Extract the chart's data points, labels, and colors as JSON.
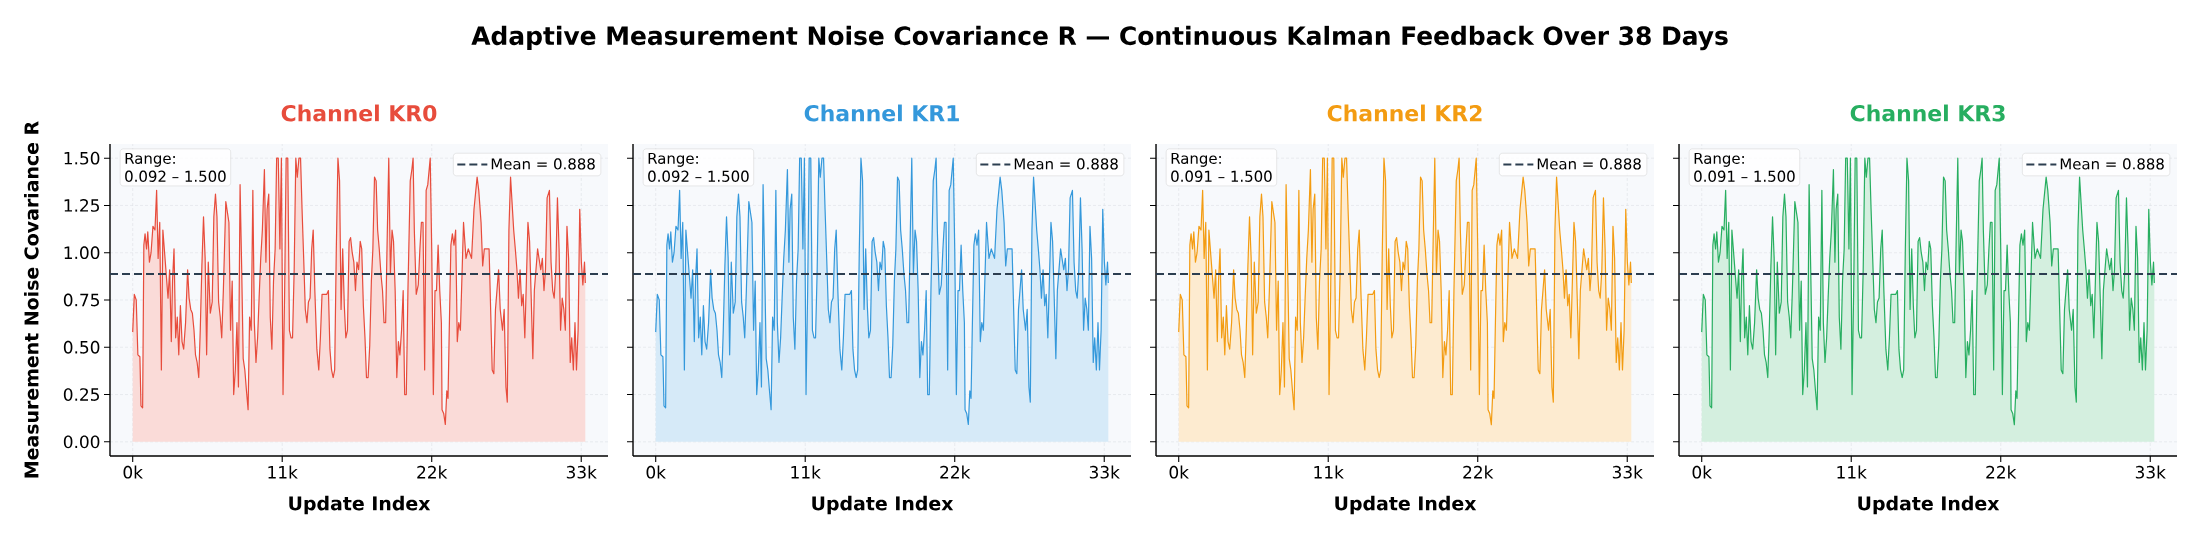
{
  "chart_data": [
    {
      "type": "area",
      "title": "Adaptive Measurement Noise Covariance R — Continuous Kalman Feedback Over 38 Days",
      "subtitle": "Channel KR0",
      "xlabel": "Update Index",
      "ylabel": "Measurement Noise Covariance R",
      "color": "#e74c3c",
      "xlim": [
        -1670,
        34970
      ],
      "ylim": [
        -0.075,
        1.575
      ],
      "xticks": [
        {
          "value": 0,
          "label": "0k"
        },
        {
          "value": 11000,
          "label": "11k"
        },
        {
          "value": 22000,
          "label": "22k"
        },
        {
          "value": 33000,
          "label": "33k"
        }
      ],
      "yticks": [
        {
          "value": 0,
          "label": "0.00"
        },
        {
          "value": 0.25,
          "label": "0.25"
        },
        {
          "value": 0.5,
          "label": "0.50"
        },
        {
          "value": 0.75,
          "label": "0.75"
        },
        {
          "value": 1,
          "label": "1.00"
        },
        {
          "value": 1.25,
          "label": "1.25"
        },
        {
          "value": 1.5,
          "label": "1.50"
        }
      ],
      "grid": true,
      "legend": "top right",
      "ref_lines": [
        {
          "axis": "y",
          "value": 0.888,
          "label": "Mean = 0.888",
          "color": "#2c3e50",
          "line_style": "dashed"
        }
      ],
      "annotations": [
        "Range:",
        "0.092 – 1.500"
      ],
      "x": [
        0,
        120,
        260,
        380,
        530,
        610,
        730,
        820,
        910,
        1020,
        1110,
        1230,
        1350,
        1490,
        1640,
        1760,
        1870,
        1990,
        2110,
        2220,
        2340,
        2490,
        2600,
        2720,
        2840,
        2930,
        3040,
        3160,
        3280,
        3390,
        3510,
        3630,
        3750,
        3890,
        4040,
        4150,
        4270,
        4390,
        4510,
        4620,
        4740,
        4860,
        4970,
        5090,
        5210,
        5330,
        5440,
        5560,
        5710,
        5850,
        5970,
        6090,
        6200,
        6320,
        6440,
        6550,
        6670,
        6850,
        6960,
        7080,
        7200,
        7320,
        7430,
        7550,
        7670,
        7780,
        7900,
        8020,
        8130,
        8250,
        8370,
        8490,
        8600,
        8720,
        8840,
        8950,
        9070,
        9190,
        9300,
        9420,
        9540,
        9690,
        9800,
        9890,
        10010,
        10120,
        10240,
        10360,
        10480,
        10590,
        10710,
        10830,
        10940,
        11060,
        11180,
        11290,
        11410,
        11530,
        11650,
        11760,
        11880,
        12000,
        12110,
        12230,
        12350,
        12460,
        12580,
        12700,
        12820,
        12930,
        13050,
        13170,
        13280,
        13400,
        13550,
        13690,
        13810,
        13930,
        14280,
        14400,
        14510,
        14630,
        14750,
        14860,
        14980,
        15100,
        15220,
        15330,
        15450,
        15570,
        15680,
        15800,
        15920,
        16030,
        16150,
        16270,
        16390,
        16500,
        16620,
        16740,
        16850,
        16970,
        17090,
        17200,
        17320,
        17440,
        17560,
        17670,
        17790,
        17910,
        18020,
        18140,
        18260,
        18380,
        18490,
        18610,
        18730,
        18840,
        18960,
        19080,
        19190,
        19310,
        19430,
        19550,
        19660,
        19780,
        19900,
        20010,
        20130,
        20250,
        20420,
        20540,
        20630,
        20720,
        20860,
        21010,
        21130,
        21240,
        21360,
        21480,
        21590,
        21710,
        21890,
        22000,
        22120,
        22240,
        22350,
        22470,
        22590,
        22710,
        22760,
        22880,
        23000,
        23110,
        23200,
        23290,
        23410,
        23520,
        23640,
        23760,
        23880,
        23990,
        24110,
        24230,
        24340,
        24520,
        24690,
        24930,
        25110,
        25220,
        25340,
        25460,
        25630,
        25750,
        25870,
        25980,
        26100,
        26220,
        26450,
        26570,
        26690,
        26800,
        26920,
        27040,
        27210,
        27330,
        27460,
        27560,
        27680,
        27800,
        27880,
        28030,
        28150,
        28270,
        28380,
        28500,
        28620,
        28730,
        28850,
        28970,
        29080,
        29200,
        29320,
        29440,
        29550,
        29790,
        29900,
        30020,
        30140,
        30260,
        30370,
        30490,
        30550,
        30660,
        30780,
        30900,
        31010,
        31130,
        31250,
        31370,
        31480,
        31600,
        31720,
        31830,
        31950,
        32070,
        32190,
        32300,
        32420,
        32540,
        32650,
        32770,
        32890,
        33010,
        33120,
        33240,
        33300
      ],
      "values": [
        0.58,
        0.78,
        0.75,
        0.46,
        0.45,
        0.19,
        0.18,
        1.04,
        1.1,
        1.02,
        1.11,
        0.95,
        1.0,
        1.14,
        1.12,
        1.33,
        0.97,
        1.16,
        0.38,
        1.12,
        null,
        null,
        0.76,
        0.91,
        0.53,
        0.85,
        1.02,
        0.55,
        0.66,
        0.46,
        0.72,
        0.53,
        0.49,
        0.63,
        0.91,
        0.76,
        0.7,
        0.68,
        0.59,
        0.46,
        0.42,
        0.34,
        0.59,
        0.93,
        1.19,
        0.97,
        0.46,
        0.95,
        0.68,
        0.74,
        1.19,
        1.31,
        1.19,
        0.74,
        0.66,
        0.55,
        0.8,
        1.27,
        null,
        1.16,
        0.59,
        0.85,
        0.25,
        0.38,
        0.63,
        0.29,
        1.36,
        0.91,
        0.44,
        0.38,
        0.27,
        0.17,
        0.66,
        0.59,
        1.33,
        0.63,
        0.42,
        0.55,
        0.76,
        0.97,
        1.12,
        1.44,
        0.95,
        1.23,
        1.31,
        0.66,
        0.49,
        0.85,
        1.02,
        1.5,
        1.5,
        1.02,
        1.5,
        0.25,
        0.8,
        1.5,
        1.5,
        0.59,
        0.55,
        0.55,
        0.91,
        1.5,
        1.4,
        1.5,
        1.5,
        1.23,
        0.97,
        0.7,
        0.63,
        0.74,
        0.76,
        1.02,
        1.12,
        0.8,
        0.49,
        0.38,
        0.55,
        0.78,
        0.78,
        0.8,
        0.49,
        0.38,
        0.34,
        0.38,
        1.02,
        1.5,
        1.38,
        0.7,
        1.02,
        0.72,
        0.55,
        0.59,
        1.06,
        1.08,
        1.0,
        0.95,
        0.8,
        0.95,
        0.91,
        1.06,
        1.02,
        0.72,
        0.55,
        0.34,
        0.34,
        0.51,
        0.85,
        1.02,
        1.4,
        1.38,
        1.12,
        1.02,
        0.89,
        0.8,
        0.63,
        0.63,
        1.1,
        1.5,
        0.89,
        1.12,
        1.06,
        0.8,
        0.34,
        0.53,
        0.46,
        0.59,
        0.8,
        0.25,
        0.25,
        0.8,
        1.38,
        1.44,
        1.5,
        1.12,
        0.78,
        0.83,
        1.02,
        1.16,
        1.16,
        0.38,
        1.33,
        1.36,
        1.5,
        1.02,
        0.25,
        0.8,
        0.8,
        1.04,
        0.8,
        0.63,
        0.17,
        0.15,
        0.092,
        0.27,
        0.23,
        0.59,
        1.04,
        1.1,
        1.04,
        1.12,
        0.53,
        0.63,
        0.59,
        null,
        1.16,
        0.97,
        1.02,
        0.97,
        1.23,
        null,
        1.4,
        1.33,
        1.16,
        0.93,
        1.02,
        null,
        null,
        1.02,
        0.38,
        0.36,
        0.7,
        0.8,
        0.91,
        0.7,
        0.59,
        0.7,
        0.29,
        0.21,
        1.12,
        1.4,
        null,
        1.12,
        1.02,
        0.91,
        0.76,
        0.91,
        0.72,
        0.78,
        0.55,
        null,
        1.16,
        1.06,
        0.76,
        0.44,
        0.8,
        1.02,
        null,
        0.91,
        0.97,
        0.8,
        0.91,
        1.29,
        null,
        1.33,
        0.95,
        0.8,
        0.76,
        0.91,
        1.29,
        1.02,
        0.59,
        0.76,
        0.7,
        0.59,
        1.14,
        0.97,
        0.42,
        0.55,
        0.38,
        0.63,
        0.38,
        0.59,
        1.23,
        0.95,
        0.83,
        0.95,
        0.84
      ]
    },
    {
      "type": "area",
      "subtitle": "Channel KR1",
      "xlabel": "Update Index",
      "color": "#3498db",
      "xlim": [
        -1670,
        34970
      ],
      "ylim": [
        -0.075,
        1.575
      ],
      "xticks": [
        {
          "value": 0,
          "label": "0k"
        },
        {
          "value": 11000,
          "label": "11k"
        },
        {
          "value": 22000,
          "label": "22k"
        },
        {
          "value": 33000,
          "label": "33k"
        }
      ],
      "yticks": [
        0,
        0.25,
        0.5,
        0.75,
        1,
        1.25,
        1.5
      ],
      "tick_labels": "x",
      "grid": true,
      "legend": "top right",
      "ref_lines": [
        {
          "axis": "y",
          "value": 0.888,
          "label": "Mean = 0.888",
          "color": "#2c3e50",
          "line_style": "dashed"
        }
      ],
      "annotations": [
        "Range:",
        "0.092 – 1.500"
      ],
      "x": [
        0,
        120,
        260,
        380,
        530,
        610,
        730,
        820,
        910,
        1020,
        1110,
        1230,
        1350,
        1490,
        1640,
        1760,
        1870,
        1990,
        2110,
        2220,
        2340,
        2490,
        2600,
        2720,
        2840,
        2930,
        3040,
        3160,
        3280,
        3390,
        3510,
        3630,
        3750,
        3890,
        4040,
        4150,
        4270,
        4390,
        4510,
        4620,
        4740,
        4860,
        4970,
        5090,
        5210,
        5330,
        5440,
        5560,
        5710,
        5850,
        5970,
        6090,
        6200,
        6320,
        6440,
        6550,
        6670,
        6850,
        6960,
        7080,
        7200,
        7320,
        7430,
        7550,
        7670,
        7780,
        7900,
        8020,
        8130,
        8250,
        8370,
        8490,
        8600,
        8720,
        8840,
        8950,
        9070,
        9190,
        9300,
        9420,
        9540,
        9690,
        9800,
        9890,
        10010,
        10120,
        10240,
        10360,
        10480,
        10590,
        10710,
        10830,
        10940,
        11060,
        11180,
        11290,
        11410,
        11530,
        11650,
        11760,
        11880,
        12000,
        12110,
        12230,
        12350,
        12460,
        12580,
        12700,
        12820,
        12930,
        13050,
        13170,
        13280,
        13400,
        13550,
        13690,
        13810,
        13930,
        14280,
        14400,
        14510,
        14630,
        14750,
        14860,
        14980,
        15100,
        15220,
        15330,
        15450,
        15570,
        15680,
        15800,
        15920,
        16030,
        16150,
        16270,
        16390,
        16500,
        16620,
        16740,
        16850,
        16970,
        17090,
        17200,
        17320,
        17440,
        17560,
        17670,
        17790,
        17910,
        18020,
        18140,
        18260,
        18380,
        18490,
        18610,
        18730,
        18840,
        18960,
        19080,
        19190,
        19310,
        19430,
        19550,
        19660,
        19780,
        19900,
        20010,
        20130,
        20250,
        20420,
        20540,
        20630,
        20720,
        20860,
        21010,
        21130,
        21240,
        21360,
        21480,
        21590,
        21710,
        21890,
        22000,
        22120,
        22240,
        22350,
        22470,
        22590,
        22710,
        22760,
        22880,
        23000,
        23110,
        23200,
        23290,
        23410,
        23520,
        23640,
        23760,
        23880,
        23990,
        24110,
        24230,
        24340,
        24520,
        24690,
        24930,
        25110,
        25220,
        25340,
        25460,
        25630,
        25750,
        25870,
        25980,
        26100,
        26220,
        26450,
        26570,
        26690,
        26800,
        26920,
        27040,
        27210,
        27330,
        27460,
        27560,
        27680,
        27800,
        27880,
        28030,
        28150,
        28270,
        28380,
        28500,
        28620,
        28730,
        28850,
        28970,
        29080,
        29200,
        29320,
        29440,
        29550,
        29790,
        29900,
        30020,
        30140,
        30260,
        30370,
        30490,
        30550,
        30660,
        30780,
        30900,
        31010,
        31130,
        31250,
        31370,
        31480,
        31600,
        31720,
        31830,
        31950,
        32070,
        32190,
        32300,
        32420,
        32540,
        32650,
        32770,
        32890,
        33010,
        33120,
        33240,
        33300
      ],
      "values": [
        0.58,
        0.78,
        0.75,
        0.46,
        0.45,
        0.19,
        0.18,
        1.04,
        1.1,
        1.02,
        1.11,
        0.95,
        1.0,
        1.14,
        1.12,
        1.33,
        0.97,
        1.16,
        0.38,
        1.12,
        null,
        null,
        0.76,
        0.91,
        0.53,
        0.85,
        1.02,
        0.55,
        0.66,
        0.46,
        0.72,
        0.53,
        0.49,
        0.63,
        0.91,
        0.76,
        0.7,
        0.68,
        0.59,
        0.46,
        0.42,
        0.34,
        0.59,
        0.93,
        1.19,
        0.97,
        0.46,
        0.95,
        0.68,
        0.74,
        1.19,
        1.31,
        1.19,
        0.74,
        0.66,
        0.55,
        0.8,
        1.27,
        null,
        1.16,
        0.59,
        0.85,
        0.25,
        0.38,
        0.63,
        0.29,
        1.36,
        0.91,
        0.44,
        0.38,
        0.27,
        0.17,
        0.66,
        0.59,
        1.33,
        0.63,
        0.42,
        0.55,
        0.76,
        0.97,
        1.12,
        1.44,
        0.95,
        1.23,
        1.31,
        0.66,
        0.49,
        0.85,
        1.02,
        1.5,
        1.5,
        1.02,
        1.5,
        0.25,
        0.8,
        1.5,
        1.5,
        0.59,
        0.55,
        0.55,
        0.91,
        1.5,
        1.4,
        1.5,
        1.5,
        1.23,
        0.97,
        0.7,
        0.63,
        0.74,
        0.76,
        1.02,
        1.12,
        0.8,
        0.49,
        0.38,
        0.55,
        0.78,
        0.78,
        0.8,
        0.49,
        0.38,
        0.34,
        0.38,
        1.02,
        1.5,
        1.38,
        0.7,
        1.02,
        0.72,
        0.55,
        0.59,
        1.06,
        1.08,
        1.0,
        0.95,
        0.8,
        0.95,
        0.91,
        1.06,
        1.02,
        0.72,
        0.55,
        0.34,
        0.34,
        0.51,
        0.85,
        1.02,
        1.4,
        1.38,
        1.12,
        1.02,
        0.89,
        0.8,
        0.63,
        0.63,
        1.1,
        1.5,
        0.89,
        1.12,
        1.06,
        0.8,
        0.34,
        0.53,
        0.46,
        0.59,
        0.8,
        0.25,
        0.25,
        0.8,
        1.38,
        1.44,
        1.5,
        1.12,
        0.78,
        0.83,
        1.02,
        1.16,
        1.16,
        0.38,
        1.33,
        1.36,
        1.5,
        1.02,
        0.25,
        0.8,
        0.8,
        1.04,
        0.8,
        0.63,
        0.17,
        0.15,
        0.092,
        0.27,
        0.23,
        0.59,
        1.04,
        1.1,
        1.04,
        1.12,
        0.53,
        0.63,
        0.59,
        null,
        1.16,
        0.97,
        1.02,
        0.97,
        1.23,
        null,
        1.4,
        1.33,
        1.16,
        0.93,
        1.02,
        null,
        null,
        1.02,
        0.38,
        0.36,
        0.7,
        0.8,
        0.91,
        0.7,
        0.59,
        0.7,
        0.29,
        0.21,
        1.12,
        1.4,
        null,
        1.12,
        1.02,
        0.91,
        0.76,
        0.91,
        0.72,
        0.78,
        0.55,
        null,
        1.16,
        1.06,
        0.76,
        0.44,
        0.8,
        1.02,
        null,
        0.91,
        0.97,
        0.8,
        0.91,
        1.29,
        null,
        1.33,
        0.95,
        0.8,
        0.76,
        0.91,
        1.29,
        1.02,
        0.59,
        0.76,
        0.7,
        0.59,
        1.14,
        0.97,
        0.42,
        0.55,
        0.38,
        0.63,
        0.38,
        0.59,
        1.23,
        0.95,
        0.83,
        0.95,
        0.84
      ]
    },
    {
      "type": "area",
      "subtitle": "Channel KR2",
      "xlabel": "Update Index",
      "color": "#f39c12",
      "xlim": [
        -1670,
        34970
      ],
      "ylim": [
        -0.075,
        1.575
      ],
      "xticks": [
        {
          "value": 0,
          "label": "0k"
        },
        {
          "value": 11000,
          "label": "11k"
        },
        {
          "value": 22000,
          "label": "22k"
        },
        {
          "value": 33000,
          "label": "33k"
        }
      ],
      "yticks": [
        0,
        0.25,
        0.5,
        0.75,
        1,
        1.25,
        1.5
      ],
      "tick_labels": "x",
      "grid": true,
      "legend": "top right",
      "ref_lines": [
        {
          "axis": "y",
          "value": 0.888,
          "label": "Mean = 0.888",
          "color": "#2c3e50",
          "line_style": "dashed"
        }
      ],
      "annotations": [
        "Range:",
        "0.091 – 1.500"
      ],
      "x": [
        0,
        120,
        260,
        380,
        530,
        610,
        730,
        820,
        910,
        1020,
        1110,
        1230,
        1350,
        1490,
        1640,
        1760,
        1870,
        1990,
        2110,
        2220,
        2340,
        2490,
        2600,
        2720,
        2840,
        2930,
        3040,
        3160,
        3280,
        3390,
        3510,
        3630,
        3750,
        3890,
        4040,
        4150,
        4270,
        4390,
        4510,
        4620,
        4740,
        4860,
        4970,
        5090,
        5210,
        5330,
        5440,
        5560,
        5710,
        5850,
        5970,
        6090,
        6200,
        6320,
        6440,
        6550,
        6670,
        6850,
        6960,
        7080,
        7200,
        7320,
        7430,
        7550,
        7670,
        7780,
        7900,
        8020,
        8130,
        8250,
        8370,
        8490,
        8600,
        8720,
        8840,
        8950,
        9070,
        9190,
        9300,
        9420,
        9540,
        9690,
        9800,
        9890,
        10010,
        10120,
        10240,
        10360,
        10480,
        10590,
        10710,
        10830,
        10940,
        11060,
        11180,
        11290,
        11410,
        11530,
        11650,
        11760,
        11880,
        12000,
        12110,
        12230,
        12350,
        12460,
        12580,
        12700,
        12820,
        12930,
        13050,
        13170,
        13280,
        13400,
        13550,
        13690,
        13810,
        13930,
        14280,
        14400,
        14510,
        14630,
        14750,
        14860,
        14980,
        15100,
        15220,
        15330,
        15450,
        15570,
        15680,
        15800,
        15920,
        16030,
        16150,
        16270,
        16390,
        16500,
        16620,
        16740,
        16850,
        16970,
        17090,
        17200,
        17320,
        17440,
        17560,
        17670,
        17790,
        17910,
        18020,
        18140,
        18260,
        18380,
        18490,
        18610,
        18730,
        18840,
        18960,
        19080,
        19190,
        19310,
        19430,
        19550,
        19660,
        19780,
        19900,
        20010,
        20130,
        20250,
        20420,
        20540,
        20630,
        20720,
        20860,
        21010,
        21130,
        21240,
        21360,
        21480,
        21590,
        21710,
        21890,
        22000,
        22120,
        22240,
        22350,
        22470,
        22590,
        22710,
        22760,
        22880,
        23000,
        23110,
        23200,
        23290,
        23410,
        23520,
        23640,
        23760,
        23880,
        23990,
        24110,
        24230,
        24340,
        24520,
        24690,
        24930,
        25110,
        25220,
        25340,
        25460,
        25630,
        25750,
        25870,
        25980,
        26100,
        26220,
        26450,
        26570,
        26690,
        26800,
        26920,
        27040,
        27210,
        27330,
        27460,
        27560,
        27680,
        27800,
        27880,
        28030,
        28150,
        28270,
        28380,
        28500,
        28620,
        28730,
        28850,
        28970,
        29080,
        29200,
        29320,
        29440,
        29550,
        29790,
        29900,
        30020,
        30140,
        30260,
        30370,
        30490,
        30550,
        30660,
        30780,
        30900,
        31010,
        31130,
        31250,
        31370,
        31480,
        31600,
        31720,
        31830,
        31950,
        32070,
        32190,
        32300,
        32420,
        32540,
        32650,
        32770,
        32890,
        33010,
        33120,
        33240,
        33300
      ],
      "values": [
        0.58,
        0.78,
        0.75,
        0.46,
        0.45,
        0.19,
        0.18,
        1.04,
        1.1,
        1.02,
        1.11,
        0.95,
        1.0,
        1.14,
        1.12,
        1.33,
        0.97,
        1.16,
        0.38,
        1.12,
        null,
        null,
        0.76,
        0.91,
        0.53,
        0.85,
        1.02,
        0.55,
        0.66,
        0.46,
        0.72,
        0.53,
        0.49,
        0.63,
        0.91,
        0.76,
        0.7,
        0.68,
        0.59,
        0.46,
        0.42,
        0.34,
        0.59,
        0.93,
        1.19,
        0.97,
        0.46,
        0.95,
        0.68,
        0.74,
        1.19,
        1.31,
        1.19,
        0.74,
        0.66,
        0.55,
        0.8,
        1.27,
        null,
        1.16,
        0.59,
        0.85,
        0.25,
        0.38,
        0.63,
        0.29,
        1.36,
        0.91,
        0.44,
        0.38,
        0.27,
        0.17,
        0.66,
        0.59,
        1.33,
        0.63,
        0.42,
        0.55,
        0.76,
        0.97,
        1.12,
        1.44,
        0.95,
        1.23,
        1.31,
        0.66,
        0.49,
        0.85,
        1.02,
        1.5,
        1.5,
        1.02,
        1.5,
        0.25,
        0.8,
        1.5,
        1.5,
        0.59,
        0.55,
        0.55,
        0.91,
        1.5,
        1.4,
        1.5,
        1.5,
        1.23,
        0.97,
        0.7,
        0.63,
        0.74,
        0.76,
        1.02,
        1.12,
        0.8,
        0.49,
        0.38,
        0.55,
        0.78,
        0.78,
        0.8,
        0.49,
        0.38,
        0.34,
        0.38,
        1.02,
        1.5,
        1.38,
        0.7,
        1.02,
        0.72,
        0.55,
        0.59,
        1.06,
        1.08,
        1.0,
        0.95,
        0.8,
        0.95,
        0.91,
        1.06,
        1.02,
        0.72,
        0.55,
        0.34,
        0.34,
        0.51,
        0.85,
        1.02,
        1.4,
        1.38,
        1.12,
        1.02,
        0.89,
        0.8,
        0.63,
        0.63,
        1.1,
        1.5,
        0.89,
        1.12,
        1.06,
        0.8,
        0.34,
        0.53,
        0.46,
        0.59,
        0.8,
        0.25,
        0.25,
        0.8,
        1.38,
        1.44,
        1.5,
        1.12,
        0.78,
        0.83,
        1.02,
        1.16,
        1.16,
        0.38,
        1.33,
        1.36,
        1.5,
        1.02,
        0.25,
        0.8,
        0.8,
        1.04,
        0.8,
        0.63,
        0.17,
        0.15,
        0.091,
        0.27,
        0.23,
        0.59,
        1.04,
        1.1,
        1.04,
        1.12,
        0.53,
        0.63,
        0.59,
        null,
        1.16,
        0.97,
        1.02,
        0.97,
        1.23,
        null,
        1.4,
        1.33,
        1.16,
        0.93,
        1.02,
        null,
        null,
        1.02,
        0.38,
        0.36,
        0.7,
        0.8,
        0.91,
        0.7,
        0.59,
        0.7,
        0.29,
        0.21,
        1.12,
        1.4,
        null,
        1.12,
        1.02,
        0.91,
        0.76,
        0.91,
        0.72,
        0.78,
        0.55,
        null,
        1.16,
        1.06,
        0.76,
        0.44,
        0.8,
        1.02,
        null,
        0.91,
        0.97,
        0.8,
        0.91,
        1.29,
        null,
        1.33,
        0.95,
        0.8,
        0.76,
        0.91,
        1.29,
        1.02,
        0.59,
        0.76,
        0.7,
        0.59,
        1.14,
        0.97,
        0.42,
        0.55,
        0.38,
        0.63,
        0.38,
        0.59,
        1.23,
        0.95,
        0.83,
        0.95,
        0.84
      ]
    },
    {
      "type": "area",
      "subtitle": "Channel KR3",
      "xlabel": "Update Index",
      "color": "#27ae60",
      "xlim": [
        -1670,
        34970
      ],
      "ylim": [
        -0.075,
        1.575
      ],
      "xticks": [
        {
          "value": 0,
          "label": "0k"
        },
        {
          "value": 11000,
          "label": "11k"
        },
        {
          "value": 22000,
          "label": "22k"
        },
        {
          "value": 33000,
          "label": "33k"
        }
      ],
      "yticks": [
        0,
        0.25,
        0.5,
        0.75,
        1,
        1.25,
        1.5
      ],
      "tick_labels": "x",
      "grid": true,
      "legend": "top right",
      "ref_lines": [
        {
          "axis": "y",
          "value": 0.888,
          "label": "Mean = 0.888",
          "color": "#2c3e50",
          "line_style": "dashed"
        }
      ],
      "annotations": [
        "Range:",
        "0.091 – 1.500"
      ],
      "x": [
        0,
        120,
        260,
        380,
        530,
        610,
        730,
        820,
        910,
        1020,
        1110,
        1230,
        1350,
        1490,
        1640,
        1760,
        1870,
        1990,
        2110,
        2220,
        2340,
        2490,
        2600,
        2720,
        2840,
        2930,
        3040,
        3160,
        3280,
        3390,
        3510,
        3630,
        3750,
        3890,
        4040,
        4150,
        4270,
        4390,
        4510,
        4620,
        4740,
        4860,
        4970,
        5090,
        5210,
        5330,
        5440,
        5560,
        5710,
        5850,
        5970,
        6090,
        6200,
        6320,
        6440,
        6550,
        6670,
        6850,
        6960,
        7080,
        7200,
        7320,
        7430,
        7550,
        7670,
        7780,
        7900,
        8020,
        8130,
        8250,
        8370,
        8490,
        8600,
        8720,
        8840,
        8950,
        9070,
        9190,
        9300,
        9420,
        9540,
        9690,
        9800,
        9890,
        10010,
        10120,
        10240,
        10360,
        10480,
        10590,
        10710,
        10830,
        10940,
        11060,
        11180,
        11290,
        11410,
        11530,
        11650,
        11760,
        11880,
        12000,
        12110,
        12230,
        12350,
        12460,
        12580,
        12700,
        12820,
        12930,
        13050,
        13170,
        13280,
        13400,
        13550,
        13690,
        13810,
        13930,
        14280,
        14400,
        14510,
        14630,
        14750,
        14860,
        14980,
        15100,
        15220,
        15330,
        15450,
        15570,
        15680,
        15800,
        15920,
        16030,
        16150,
        16270,
        16390,
        16500,
        16620,
        16740,
        16850,
        16970,
        17090,
        17200,
        17320,
        17440,
        17560,
        17670,
        17790,
        17910,
        18020,
        18140,
        18260,
        18380,
        18490,
        18610,
        18730,
        18840,
        18960,
        19080,
        19190,
        19310,
        19430,
        19550,
        19660,
        19780,
        19900,
        20010,
        20130,
        20250,
        20420,
        20540,
        20630,
        20720,
        20860,
        21010,
        21130,
        21240,
        21360,
        21480,
        21590,
        21710,
        21890,
        22000,
        22120,
        22240,
        22350,
        22470,
        22590,
        22710,
        22760,
        22880,
        23000,
        23110,
        23200,
        23290,
        23410,
        23520,
        23640,
        23760,
        23880,
        23990,
        24110,
        24230,
        24340,
        24520,
        24690,
        24930,
        25110,
        25220,
        25340,
        25460,
        25630,
        25750,
        25870,
        25980,
        26100,
        26220,
        26450,
        26570,
        26690,
        26800,
        26920,
        27040,
        27210,
        27330,
        27460,
        27560,
        27680,
        27800,
        27880,
        28030,
        28150,
        28270,
        28380,
        28500,
        28620,
        28730,
        28850,
        28970,
        29080,
        29200,
        29320,
        29440,
        29550,
        29790,
        29900,
        30020,
        30140,
        30260,
        30370,
        30490,
        30550,
        30660,
        30780,
        30900,
        31010,
        31130,
        31250,
        31370,
        31480,
        31600,
        31720,
        31830,
        31950,
        32070,
        32190,
        32300,
        32420,
        32540,
        32650,
        32770,
        32890,
        33010,
        33120,
        33240,
        33300
      ],
      "values": [
        0.58,
        0.78,
        0.75,
        0.46,
        0.45,
        0.19,
        0.18,
        1.04,
        1.1,
        1.02,
        1.11,
        0.95,
        1.0,
        1.14,
        1.12,
        1.33,
        0.97,
        1.16,
        0.38,
        1.12,
        null,
        null,
        0.76,
        0.91,
        0.53,
        0.85,
        1.02,
        0.55,
        0.66,
        0.46,
        0.72,
        0.53,
        0.49,
        0.63,
        0.91,
        0.76,
        0.7,
        0.68,
        0.59,
        0.46,
        0.42,
        0.34,
        0.59,
        0.93,
        1.19,
        0.97,
        0.46,
        0.95,
        0.68,
        0.74,
        1.19,
        1.31,
        1.19,
        0.74,
        0.66,
        0.55,
        0.8,
        1.27,
        null,
        1.16,
        0.59,
        0.85,
        0.25,
        0.38,
        0.63,
        0.29,
        1.36,
        0.91,
        0.44,
        0.38,
        0.27,
        0.17,
        0.66,
        0.59,
        1.33,
        0.63,
        0.42,
        0.55,
        0.76,
        0.97,
        1.12,
        1.44,
        0.95,
        1.23,
        1.31,
        0.66,
        0.49,
        0.85,
        1.02,
        1.5,
        1.5,
        1.02,
        1.5,
        0.25,
        0.8,
        1.5,
        1.5,
        0.59,
        0.55,
        0.55,
        0.91,
        1.5,
        1.4,
        1.5,
        1.5,
        1.23,
        0.97,
        0.7,
        0.63,
        0.74,
        0.76,
        1.02,
        1.12,
        0.8,
        0.49,
        0.38,
        0.55,
        0.78,
        0.78,
        0.8,
        0.49,
        0.38,
        0.34,
        0.38,
        1.02,
        1.5,
        1.38,
        0.7,
        1.02,
        0.72,
        0.55,
        0.59,
        1.06,
        1.08,
        1.0,
        0.95,
        0.8,
        0.95,
        0.91,
        1.06,
        1.02,
        0.72,
        0.55,
        0.34,
        0.34,
        0.51,
        0.85,
        1.02,
        1.4,
        1.38,
        1.12,
        1.02,
        0.89,
        0.8,
        0.63,
        0.63,
        1.1,
        1.5,
        0.89,
        1.12,
        1.06,
        0.8,
        0.34,
        0.53,
        0.46,
        0.59,
        0.8,
        0.25,
        0.25,
        0.8,
        1.38,
        1.44,
        1.5,
        1.12,
        0.78,
        0.83,
        1.02,
        1.16,
        1.16,
        0.38,
        1.33,
        1.36,
        1.5,
        1.02,
        0.25,
        0.8,
        0.8,
        1.04,
        0.8,
        0.63,
        0.17,
        0.15,
        0.091,
        0.27,
        0.23,
        0.59,
        1.04,
        1.1,
        1.04,
        1.12,
        0.53,
        0.63,
        0.59,
        null,
        1.16,
        0.97,
        1.02,
        0.97,
        1.23,
        null,
        1.4,
        1.33,
        1.16,
        0.93,
        1.02,
        null,
        null,
        1.02,
        0.38,
        0.36,
        0.7,
        0.8,
        0.91,
        0.7,
        0.59,
        0.7,
        0.29,
        0.21,
        1.12,
        1.4,
        null,
        1.12,
        1.02,
        0.91,
        0.76,
        0.91,
        0.72,
        0.78,
        0.55,
        null,
        1.16,
        1.06,
        0.76,
        0.44,
        0.8,
        1.02,
        null,
        0.91,
        0.97,
        0.8,
        0.91,
        1.29,
        null,
        1.33,
        0.95,
        0.8,
        0.76,
        0.91,
        1.29,
        1.02,
        0.59,
        0.76,
        0.7,
        0.59,
        1.14,
        0.97,
        0.42,
        0.55,
        0.38,
        0.63,
        0.38,
        0.59,
        1.23,
        0.95,
        0.83,
        0.95,
        0.84
      ]
    }
  ]
}
